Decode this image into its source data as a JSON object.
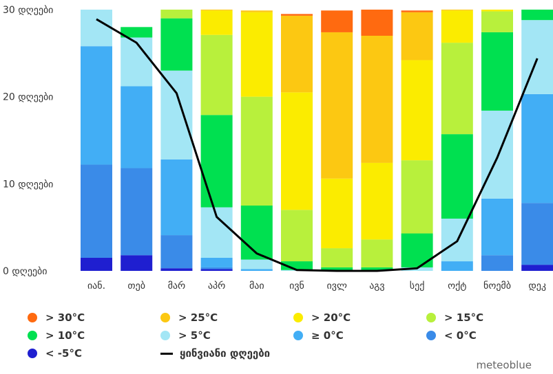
{
  "chart_data": {
    "type": "bar",
    "stacked": true,
    "categories": [
      "იან.",
      "თებ",
      "მარ",
      "აპრ",
      "მაი",
      "ივნ",
      "ივლ",
      "აგვ",
      "სექ",
      "ოქტ",
      "ნოემბ",
      "დეკ"
    ],
    "ylim": [
      0,
      30
    ],
    "yticks": [
      {
        "value": 0,
        "label": "0 დღეები"
      },
      {
        "value": 10,
        "label": "10 დღეები"
      },
      {
        "value": 20,
        "label": "20 დღეები"
      },
      {
        "value": 30,
        "label": "30 დღეები"
      }
    ],
    "series": [
      {
        "name": "< -5°C",
        "color": "#1f1fd0",
        "values": [
          1.5,
          1.8,
          0.3,
          0.2,
          0,
          0,
          0,
          0,
          0,
          0,
          0,
          0.7
        ]
      },
      {
        "name": "< 0°C",
        "color": "#3a8be8",
        "values": [
          10.7,
          10.0,
          3.8,
          0.2,
          0,
          0,
          0,
          0,
          0,
          0,
          1.8,
          7.1
        ]
      },
      {
        "name": "≥ 0°C",
        "color": "#42aef5",
        "values": [
          13.6,
          9.4,
          8.7,
          1.1,
          0.2,
          0,
          0,
          0,
          0,
          1.1,
          6.5,
          12.5
        ]
      },
      {
        "name": "> 5°C",
        "color": "#a3e6f5",
        "values": [
          4.2,
          5.6,
          10.2,
          5.8,
          1.1,
          0.1,
          0.1,
          0.1,
          0.4,
          4.9,
          10.1,
          8.5
        ]
      },
      {
        "name": "> 10°C",
        "color": "#00e050",
        "values": [
          0,
          1.2,
          6.0,
          10.6,
          6.2,
          1.0,
          0.3,
          0.3,
          3.9,
          9.7,
          9.0,
          1.2
        ]
      },
      {
        "name": "> 15°C",
        "color": "#b8f03c",
        "values": [
          0,
          0,
          1.0,
          9.2,
          12.5,
          5.9,
          2.2,
          3.2,
          8.4,
          10.5,
          2.4,
          0
        ]
      },
      {
        "name": "> 20°C",
        "color": "#fbec00",
        "values": [
          0,
          0,
          0,
          2.8,
          9.7,
          13.5,
          8.0,
          8.8,
          11.5,
          3.7,
          0.2,
          0
        ]
      },
      {
        "name": "> 25°C",
        "color": "#fcc812",
        "values": [
          0,
          0,
          0,
          0.1,
          0.2,
          8.8,
          16.8,
          14.6,
          5.5,
          0.1,
          0,
          0
        ]
      },
      {
        "name": "> 30°C",
        "color": "#ff6a10",
        "values": [
          0,
          0,
          0,
          0,
          0,
          0.2,
          2.5,
          3.0,
          0.2,
          0,
          0,
          0
        ]
      }
    ],
    "line": {
      "name": "ყინვიანი დღეები",
      "color": "#000000",
      "values": [
        28.9,
        26.2,
        20.4,
        6.2,
        2.0,
        0.1,
        0.0,
        0.0,
        0.3,
        3.4,
        13.0,
        24.4
      ]
    }
  },
  "legend": [
    {
      "label": "> 30°C",
      "color": "#ff6a10",
      "kind": "dot"
    },
    {
      "label": "> 25°C",
      "color": "#fcc812",
      "kind": "dot"
    },
    {
      "label": "> 20°C",
      "color": "#fbec00",
      "kind": "dot"
    },
    {
      "label": "> 15°C",
      "color": "#b8f03c",
      "kind": "dot"
    },
    {
      "label": "> 10°C",
      "color": "#00e050",
      "kind": "dot"
    },
    {
      "label": "> 5°C",
      "color": "#a3e6f5",
      "kind": "dot"
    },
    {
      "label": "≥ 0°C",
      "color": "#42aef5",
      "kind": "dot"
    },
    {
      "label": "< 0°C",
      "color": "#3a8be8",
      "kind": "dot"
    },
    {
      "label": "< -5°C",
      "color": "#1f1fd0",
      "kind": "dot"
    },
    {
      "label": "ყინვიანი დღეები",
      "color": "#000000",
      "kind": "line"
    }
  ],
  "credit": "meteoblue"
}
